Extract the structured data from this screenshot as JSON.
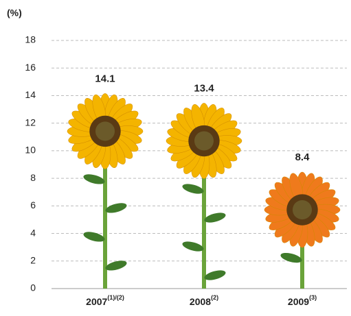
{
  "chart_data": {
    "type": "pictogram-bar",
    "y_label": "(%)",
    "categories": [
      "2007",
      "2008",
      "2009"
    ],
    "category_notes": [
      "(1)/(2)",
      "(2)",
      "(3)"
    ],
    "values": [
      14.1,
      13.4,
      8.4
    ],
    "colors": [
      "#f4b400",
      "#f4b400",
      "#ef7a1c"
    ],
    "ylim": [
      0,
      18
    ],
    "yticks": [
      0,
      2,
      4,
      6,
      8,
      10,
      12,
      14,
      16,
      18
    ],
    "grid": true
  }
}
